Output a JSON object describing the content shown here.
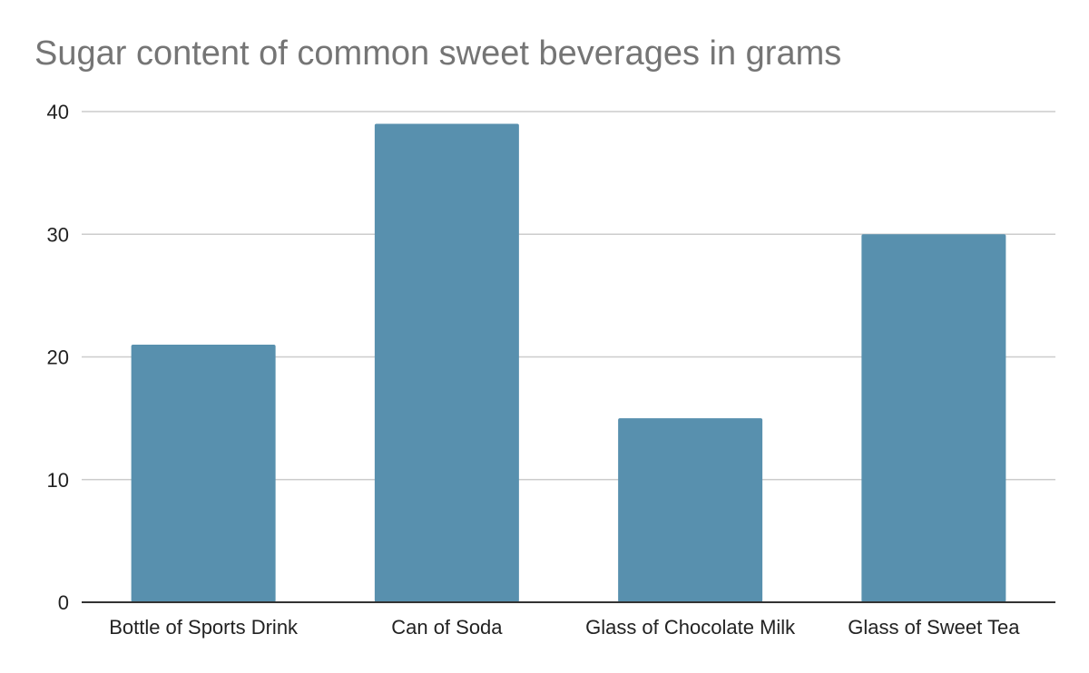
{
  "chart_data": {
    "type": "bar",
    "title": "Sugar content of common sweet beverages in grams",
    "categories": [
      "Bottle of Sports Drink",
      "Can of Soda",
      "Glass of Chocolate Milk",
      "Glass of Sweet Tea"
    ],
    "values": [
      21,
      39,
      15,
      30
    ],
    "xlabel": "",
    "ylabel": "",
    "ylim": [
      0,
      40
    ],
    "yticks": [
      "0",
      "10",
      "20",
      "30",
      "40"
    ],
    "grid": true,
    "legend": "none",
    "bar_color": "#5890ae",
    "gridline_color": "#cccccc",
    "axis_color": "#333333"
  }
}
